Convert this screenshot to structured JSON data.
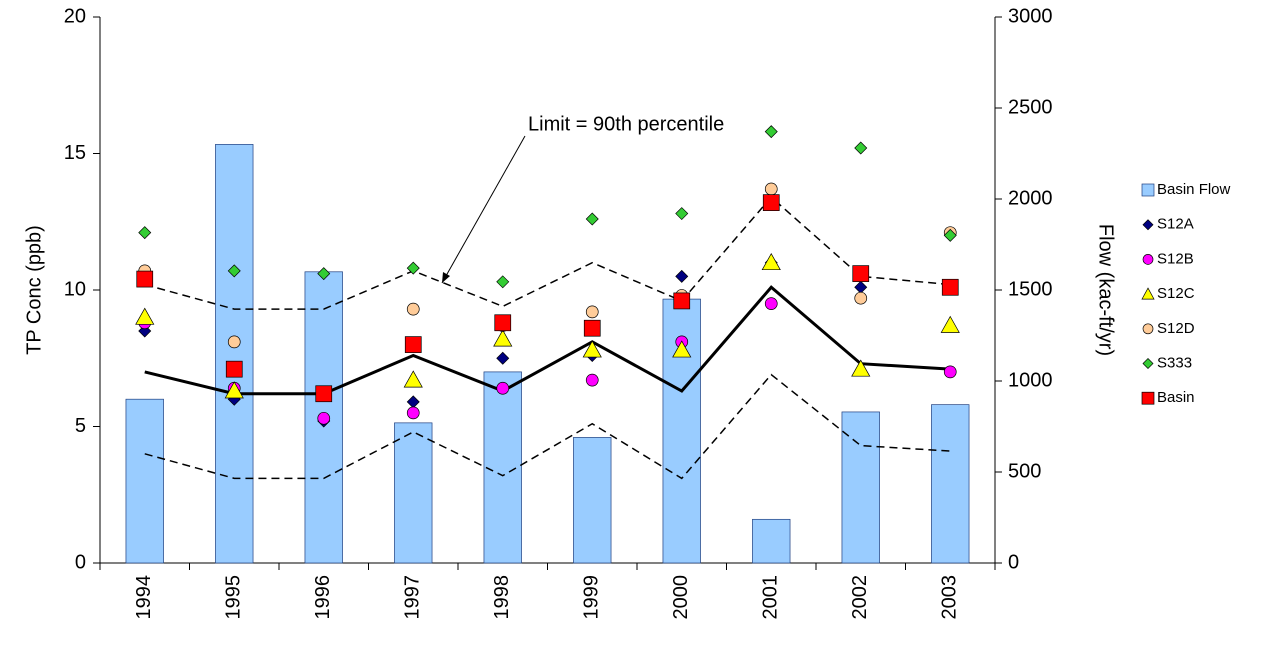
{
  "chart_data": {
    "type": "combo",
    "annotation": "Limit = 90th percentile",
    "ylabel": "TP Conc (ppb)",
    "y2label": "Flow (kac-ft/yr)",
    "categories": [
      "1994",
      "1995",
      "1996",
      "1997",
      "1998",
      "1999",
      "2000",
      "2001",
      "2002",
      "2003"
    ],
    "ylim": [
      0,
      20
    ],
    "yticks": [
      0,
      5,
      10,
      15,
      20
    ],
    "y2lim": [
      0,
      3000
    ],
    "y2ticks": [
      0,
      500,
      1000,
      1500,
      2000,
      2500,
      3000
    ],
    "series": [
      {
        "name": "Basin Flow",
        "type": "bar",
        "axis": "y2",
        "color": "#99ccff",
        "values": [
          900,
          2300,
          1600,
          770,
          1050,
          690,
          1450,
          240,
          830,
          870
        ]
      },
      {
        "type": "line",
        "color": "#000000",
        "dash": false,
        "values": [
          7.0,
          6.2,
          6.2,
          7.6,
          6.3,
          8.1,
          6.3,
          10.1,
          7.3,
          7.1
        ]
      },
      {
        "type": "line",
        "color": "#000000",
        "dash": true,
        "values": [
          10.2,
          9.3,
          9.3,
          10.7,
          9.4,
          11.0,
          9.6,
          13.4,
          10.5,
          10.2
        ]
      },
      {
        "type": "line",
        "color": "#000000",
        "dash": true,
        "values": [
          4.0,
          3.1,
          3.1,
          4.8,
          3.2,
          5.1,
          3.1,
          6.9,
          4.3,
          4.1
        ]
      },
      {
        "name": "S12A",
        "type": "scatter",
        "marker": "diamond",
        "color": "#000080",
        "values": [
          8.5,
          6.0,
          5.2,
          5.9,
          7.5,
          7.6,
          10.5,
          11.0,
          10.1,
          null
        ]
      },
      {
        "name": "S12B",
        "type": "scatter",
        "marker": "circle",
        "color": "#ff00ff",
        "values": [
          8.8,
          6.4,
          5.3,
          5.5,
          6.4,
          6.7,
          8.1,
          9.5,
          null,
          7.0
        ]
      },
      {
        "name": "S12C",
        "type": "scatter",
        "marker": "triangle",
        "color": "#ffff00",
        "values": [
          9.0,
          6.3,
          null,
          6.7,
          8.2,
          7.8,
          7.8,
          11.0,
          7.1,
          8.7
        ]
      },
      {
        "name": "S12D",
        "type": "scatter",
        "marker": "circle",
        "color": "#ffcc99",
        "values": [
          10.7,
          8.1,
          null,
          9.3,
          8.7,
          9.2,
          9.8,
          13.7,
          9.7,
          12.1
        ]
      },
      {
        "name": "S333",
        "type": "scatter",
        "marker": "diamond",
        "color": "#33cc33",
        "values": [
          12.1,
          10.7,
          10.6,
          10.8,
          10.3,
          12.6,
          12.8,
          15.8,
          15.2,
          12.0
        ]
      },
      {
        "name": "Basin",
        "type": "scatter",
        "marker": "square",
        "color": "#ff0000",
        "values": [
          10.4,
          7.1,
          6.2,
          8.0,
          8.8,
          8.6,
          9.6,
          13.2,
          10.6,
          10.1
        ]
      }
    ]
  }
}
